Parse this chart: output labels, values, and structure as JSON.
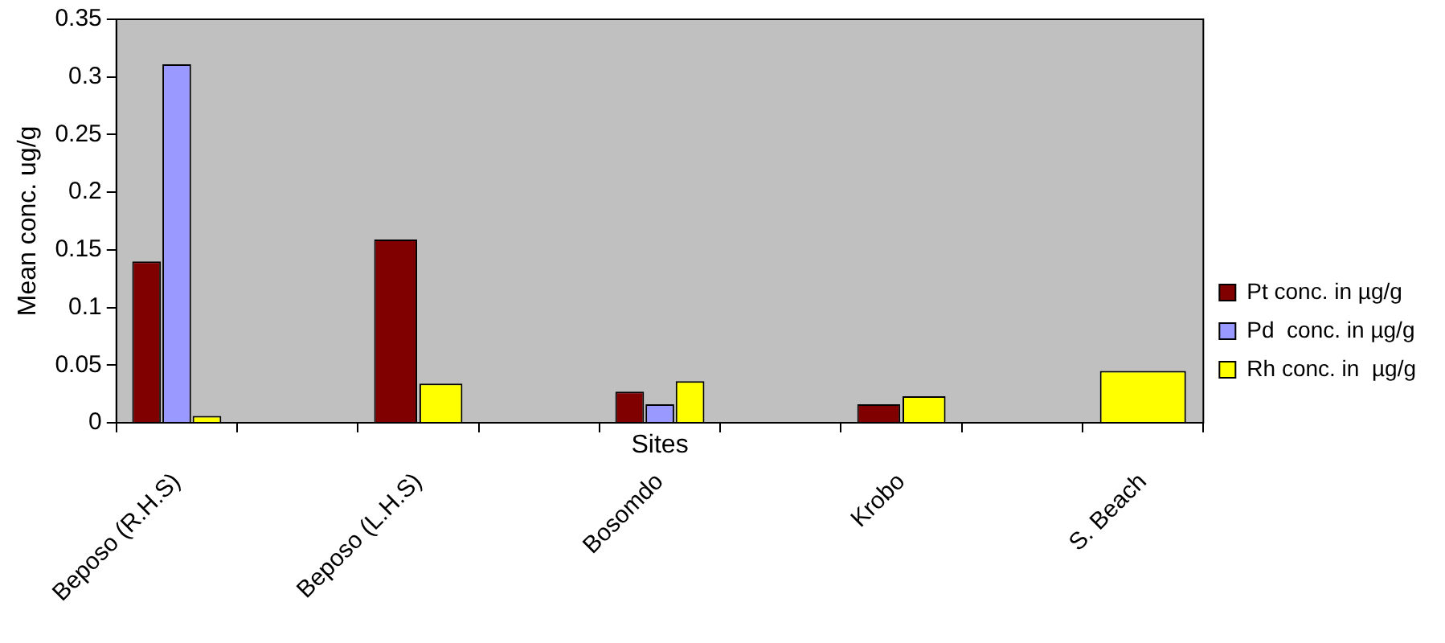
{
  "chart_data": {
    "type": "bar",
    "xlabel": "Sites",
    "ylabel": "Mean conc. ug/g",
    "categories": [
      "Beposo (R.H.S)",
      null,
      "Beposo (L.H.S)",
      null,
      "Bosomdo",
      null,
      "Krobo",
      null,
      "S. Beach"
    ],
    "series": [
      {
        "name": "Pt conc. in µg/g",
        "color": "#800000",
        "values": [
          0.14,
          null,
          0.159,
          null,
          0.027,
          null,
          0.016,
          null,
          null
        ]
      },
      {
        "name": "Pd  conc. in µg/g",
        "color": "#9999ff",
        "values": [
          0.311,
          null,
          null,
          null,
          0.016,
          null,
          null,
          null,
          null
        ]
      },
      {
        "name": "Rh conc. in  µg/g",
        "color": "#ffff00",
        "values": [
          0.006,
          null,
          0.034,
          null,
          0.036,
          null,
          0.023,
          null,
          0.045
        ]
      }
    ],
    "ylim": [
      0,
      0.35
    ],
    "yticks": [
      0,
      0.05,
      0.1,
      0.15,
      0.2,
      0.25,
      0.3,
      0.35
    ],
    "grid": false,
    "legend": "right"
  }
}
